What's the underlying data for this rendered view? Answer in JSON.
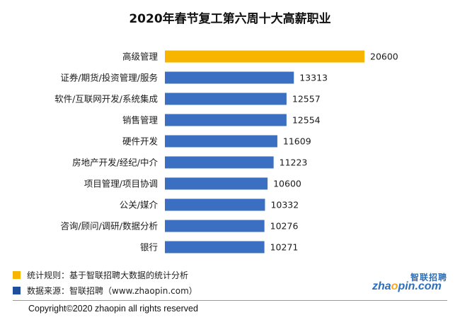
{
  "chart_data": {
    "type": "bar",
    "orientation": "horizontal",
    "title": "2020年春节复工第六周十大高薪职业",
    "categories": [
      "高级管理",
      "证券/期货/投资管理/服务",
      "软件/互联网开发/系统集成",
      "销售管理",
      "硬件开发",
      "房地产开发/经纪/中介",
      "项目管理/项目协调",
      "公关/媒介",
      "咨询/顾问/调研/数据分析",
      "银行"
    ],
    "values": [
      20600,
      13313,
      12557,
      12554,
      11609,
      11223,
      10600,
      10332,
      10276,
      10271
    ],
    "highlight_index": 0,
    "colors": {
      "highlight": "#f7b500",
      "bar": "#3a6fc2"
    },
    "grid": false,
    "legend": "none"
  },
  "notes": [
    {
      "text": "统计规则：基于智联招聘大数据的统计分析",
      "color": "#f7b500"
    },
    {
      "text": "数据来源：智联招聘（www.zhaopin.com）",
      "color": "#1f4e9c"
    }
  ],
  "logo": {
    "cn": "智联招聘",
    "en_pre": "zha",
    "en_o": "o",
    "en_post": "pin.com"
  },
  "copyright": "Copyright©2020 zhaopin all rights reserved"
}
